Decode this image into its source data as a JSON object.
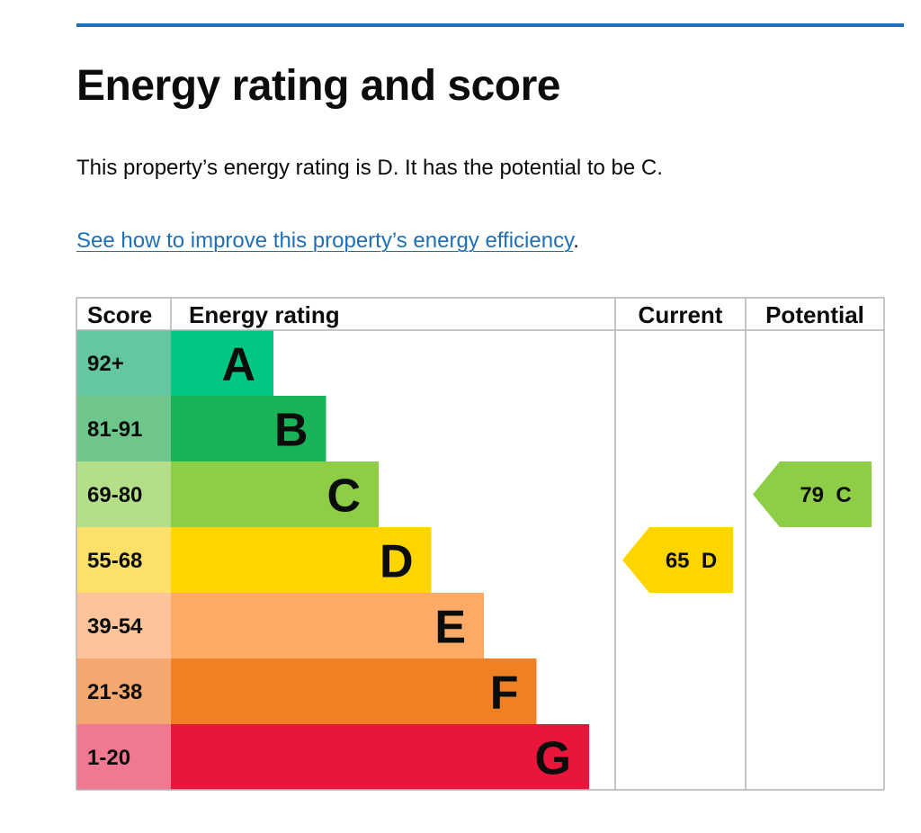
{
  "page": {
    "title": "Energy rating and score",
    "summary": "This property’s energy rating is D. It has the potential to be C.",
    "link_text": "See how to improve this property’s energy efficiency",
    "link_suffix": "."
  },
  "colors": {
    "accent_rule": "#1d70b8",
    "link": "#1d70b8",
    "text": "#0b0c0c",
    "grid": "#b1b4b6"
  },
  "chart_data": {
    "type": "table",
    "headers": {
      "score": "Score",
      "rating": "Energy rating",
      "current": "Current",
      "potential": "Potential"
    },
    "bands": [
      {
        "letter": "A",
        "score": "92+",
        "color": "#00c781",
        "score_bg": "#64c7a0"
      },
      {
        "letter": "B",
        "score": "81-91",
        "color": "#19b459",
        "score_bg": "#6ec68c"
      },
      {
        "letter": "C",
        "score": "69-80",
        "color": "#8dce46",
        "score_bg": "#b4df88"
      },
      {
        "letter": "D",
        "score": "55-68",
        "color": "#ffd500",
        "score_bg": "#fde06a"
      },
      {
        "letter": "E",
        "score": "39-54",
        "color": "#fcaa65",
        "score_bg": "#fdc49c"
      },
      {
        "letter": "F",
        "score": "21-38",
        "color": "#ef8023",
        "score_bg": "#f4a870"
      },
      {
        "letter": "G",
        "score": "1-20",
        "color": "#e9153b",
        "score_bg": "#f07891"
      }
    ],
    "current": {
      "score": 65,
      "letter": "D",
      "label": "65  D"
    },
    "potential": {
      "score": 79,
      "letter": "C",
      "label": "79  C"
    }
  }
}
